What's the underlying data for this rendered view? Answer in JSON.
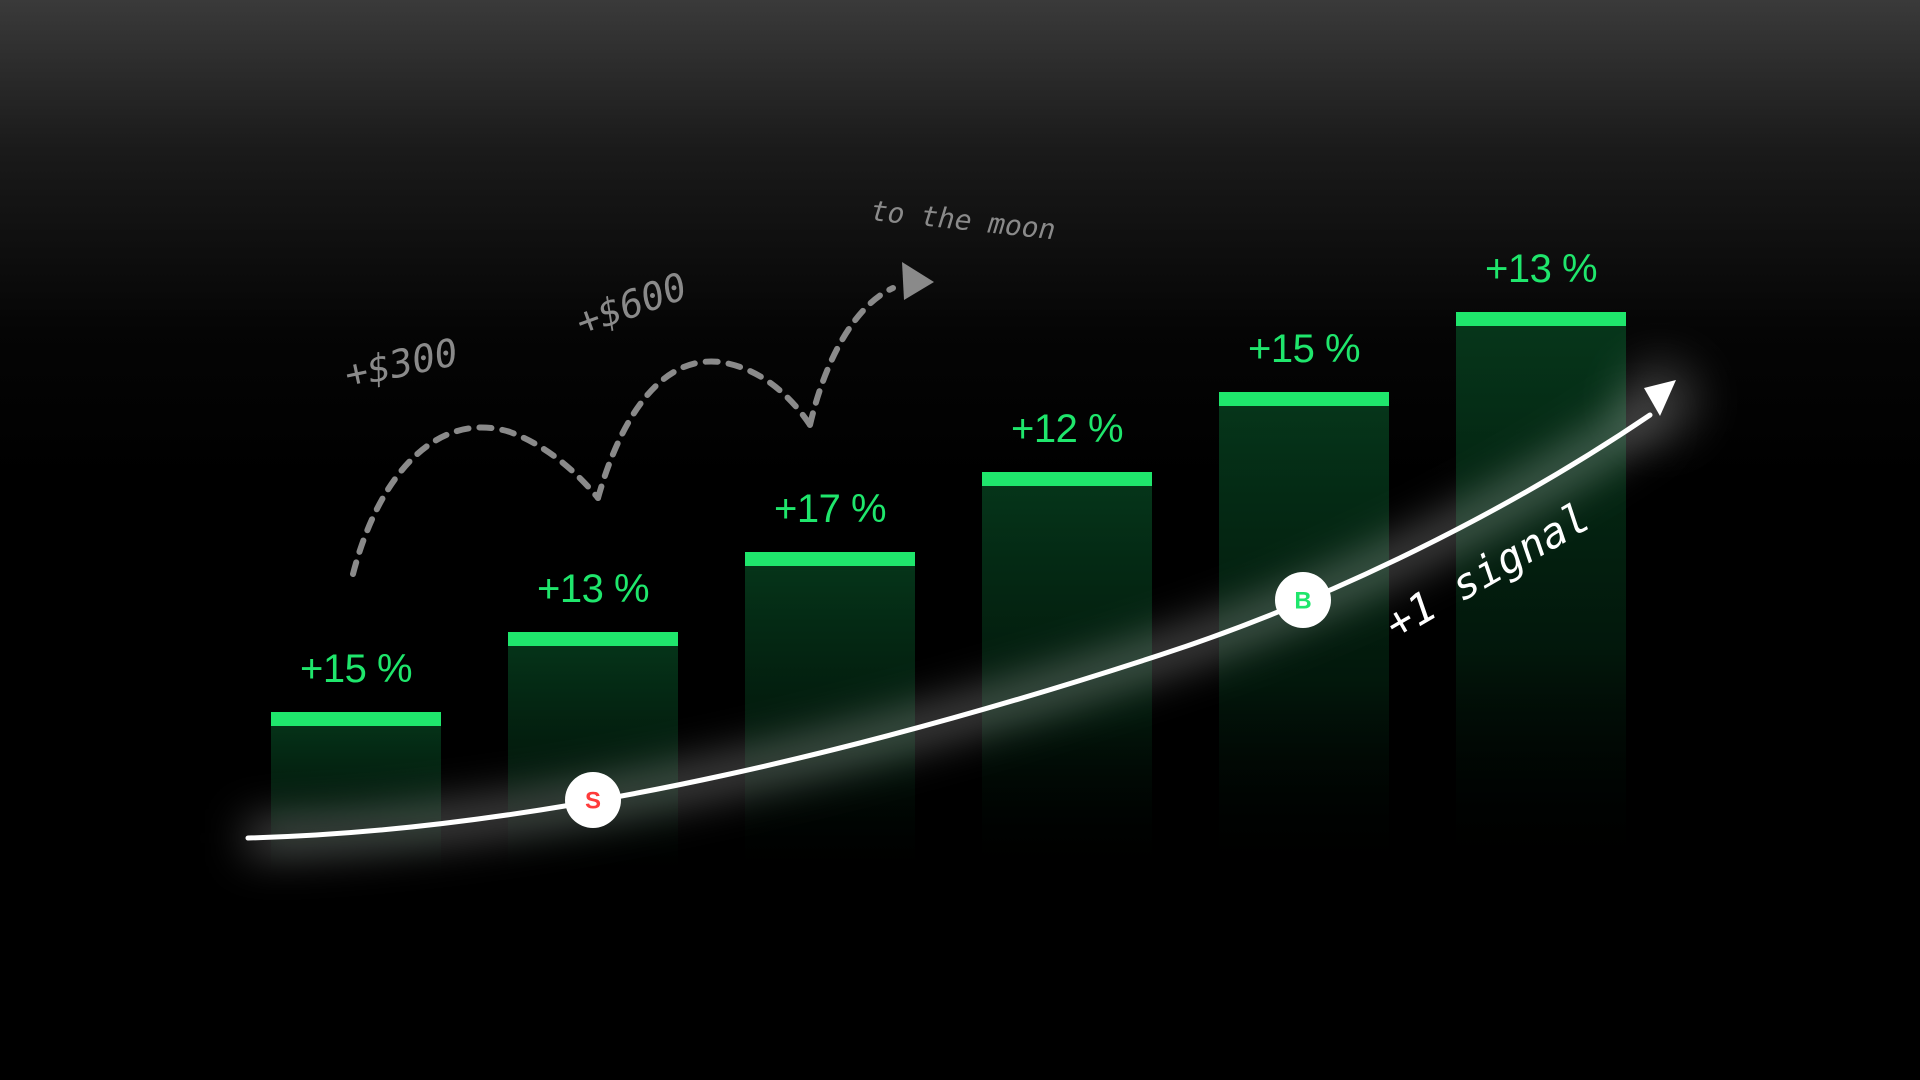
{
  "colors": {
    "bar_cap": "#1fe66c",
    "bar_fill_top": "#063a1c",
    "label": "#1fe66c",
    "trend_line": "#ffffff",
    "annotation": "#8a8a8a",
    "sell_marker": "#ff3b3b",
    "buy_marker": "#1fe66c"
  },
  "chart_data": {
    "type": "bar",
    "categories": [
      "",
      "",
      "",
      "",
      "",
      ""
    ],
    "series": [
      {
        "values": [
          1,
          2,
          3,
          4,
          5,
          6
        ]
      }
    ],
    "bar_labels": [
      "+15 %",
      "+13 %",
      "+17 %",
      "+12 %",
      "+15 %",
      "+13 %"
    ],
    "title": "",
    "xlabel": "",
    "ylabel": "",
    "grid": false,
    "legend": "none",
    "annotations": {
      "dollar_300": "+$300",
      "dollar_600": "+$600",
      "moon": "to the moon",
      "signal": "+1 signal"
    },
    "markers": [
      {
        "letter": "S",
        "kind": "sell",
        "bar_index": 1
      },
      {
        "letter": "B",
        "kind": "buy",
        "bar_index": 4
      }
    ]
  }
}
